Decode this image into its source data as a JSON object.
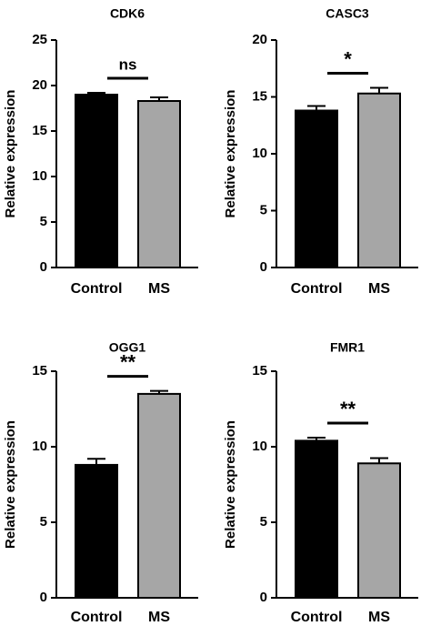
{
  "chart_data": [
    {
      "type": "bar",
      "title": "CDK6",
      "y_label": "Relative expression",
      "categories": [
        "Control",
        "MS"
      ],
      "values": [
        19.0,
        18.3
      ],
      "errors": [
        0.2,
        0.4
      ],
      "colors": [
        "#000000",
        "#a6a6a6"
      ],
      "ylim": [
        0,
        25
      ],
      "yticks": [
        0,
        5,
        10,
        15,
        20,
        25
      ],
      "annotation": "ns"
    },
    {
      "type": "bar",
      "title": "CASC3",
      "y_label": "Relative expression",
      "categories": [
        "Control",
        "MS"
      ],
      "values": [
        13.8,
        15.3
      ],
      "errors": [
        0.4,
        0.5
      ],
      "colors": [
        "#000000",
        "#a6a6a6"
      ],
      "ylim": [
        0,
        20
      ],
      "yticks": [
        0,
        5,
        10,
        15,
        20
      ],
      "annotation": "*"
    },
    {
      "type": "bar",
      "title": "OGG1",
      "y_label": "Relative expression",
      "categories": [
        "Control",
        "MS"
      ],
      "values": [
        8.8,
        13.5
      ],
      "errors": [
        0.4,
        0.2
      ],
      "colors": [
        "#000000",
        "#a6a6a6"
      ],
      "ylim": [
        0,
        15
      ],
      "yticks": [
        0,
        5,
        10,
        15
      ],
      "annotation": "**"
    },
    {
      "type": "bar",
      "title": "FMR1",
      "y_label": "Relative expression",
      "categories": [
        "Control",
        "MS"
      ],
      "values": [
        10.4,
        8.9
      ],
      "errors": [
        0.2,
        0.35
      ],
      "colors": [
        "#000000",
        "#a6a6a6"
      ],
      "ylim": [
        0,
        15
      ],
      "yticks": [
        0,
        5,
        10,
        15
      ],
      "annotation": "**"
    }
  ]
}
